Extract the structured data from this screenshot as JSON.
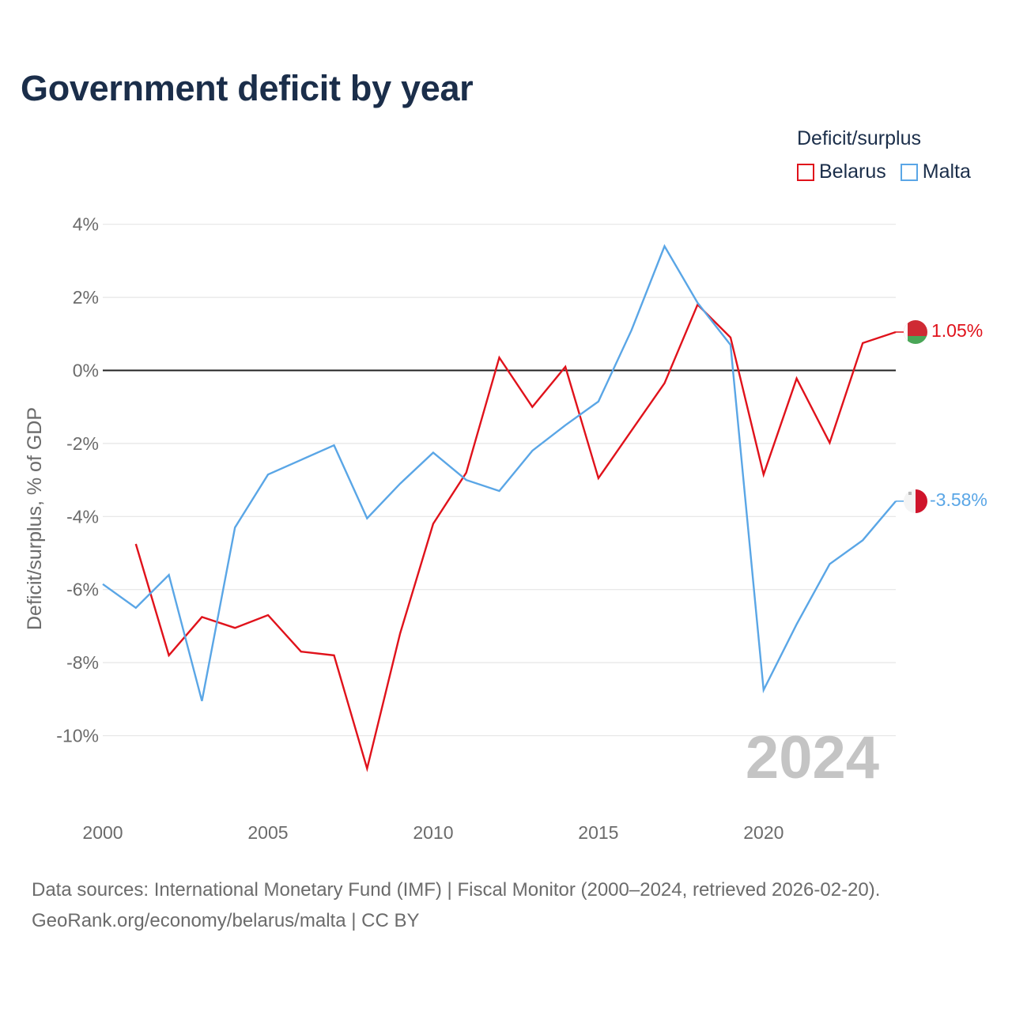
{
  "title": "Government deficit by year",
  "legend": {
    "title": "Deficit/surplus",
    "items": [
      {
        "name": "Belarus",
        "color": "#e0121b"
      },
      {
        "name": "Malta",
        "color": "#5aa6e6"
      }
    ]
  },
  "footer": {
    "line1": "Data sources: International Monetary Fund (IMF) | Fiscal Monitor (2000–2024, retrieved 2026-02-20).",
    "line2": "GeoRank.org/economy/belarus/malta | CC BY"
  },
  "chart_data": {
    "type": "line",
    "title": "Government deficit by year",
    "ylabel": "Deficit/surplus, % of GDP",
    "xlabel": "",
    "xlim": [
      2000,
      2024
    ],
    "ylim": [
      -12,
      4.5
    ],
    "yticks": [
      4,
      2,
      0,
      -2,
      -4,
      -6,
      -8,
      -10
    ],
    "ytick_labels": [
      "4%",
      "2%",
      "0%",
      "-2%",
      "-4%",
      "-6%",
      "-8%",
      "-10%"
    ],
    "xticks": [
      2000,
      2005,
      2010,
      2015,
      2020
    ],
    "xtick_labels": [
      "2000",
      "2005",
      "2010",
      "2015",
      "2020"
    ],
    "year_watermark": "2024",
    "series": [
      {
        "name": "Belarus",
        "color": "#e0121b",
        "end_label": "1.05%",
        "points": [
          [
            2001,
            -4.75
          ],
          [
            2002,
            -7.8
          ],
          [
            2003,
            -6.75
          ],
          [
            2004,
            -7.05
          ],
          [
            2005,
            -6.7
          ],
          [
            2006,
            -7.7
          ],
          [
            2007,
            -7.8
          ],
          [
            2008,
            -10.9
          ],
          [
            2009,
            -7.2
          ],
          [
            2010,
            -4.2
          ],
          [
            2011,
            -2.8
          ],
          [
            2012,
            0.35
          ],
          [
            2013,
            -1.0
          ],
          [
            2014,
            0.1
          ],
          [
            2015,
            -2.95
          ],
          [
            2016,
            -1.65
          ],
          [
            2017,
            -0.35
          ],
          [
            2018,
            1.8
          ],
          [
            2019,
            0.9
          ],
          [
            2020,
            -2.85
          ],
          [
            2021,
            -0.22
          ],
          [
            2022,
            -1.98
          ],
          [
            2023,
            0.75
          ],
          [
            2024,
            1.05
          ]
        ]
      },
      {
        "name": "Malta",
        "color": "#5aa6e6",
        "end_label": "-3.58%",
        "points": [
          [
            2000,
            -5.85
          ],
          [
            2001,
            -6.5
          ],
          [
            2002,
            -5.6
          ],
          [
            2003,
            -9.05
          ],
          [
            2004,
            -4.3
          ],
          [
            2005,
            -2.85
          ],
          [
            2006,
            -2.45
          ],
          [
            2007,
            -2.05
          ],
          [
            2008,
            -4.05
          ],
          [
            2009,
            -3.1
          ],
          [
            2010,
            -2.25
          ],
          [
            2011,
            -3.0
          ],
          [
            2012,
            -3.3
          ],
          [
            2013,
            -2.2
          ],
          [
            2014,
            -1.5
          ],
          [
            2015,
            -0.85
          ],
          [
            2016,
            1.1
          ],
          [
            2017,
            3.4
          ],
          [
            2018,
            1.85
          ],
          [
            2019,
            0.7
          ],
          [
            2020,
            -8.75
          ],
          [
            2021,
            -6.95
          ],
          [
            2022,
            -5.3
          ],
          [
            2023,
            -4.65
          ],
          [
            2024,
            -3.58
          ]
        ]
      }
    ]
  }
}
